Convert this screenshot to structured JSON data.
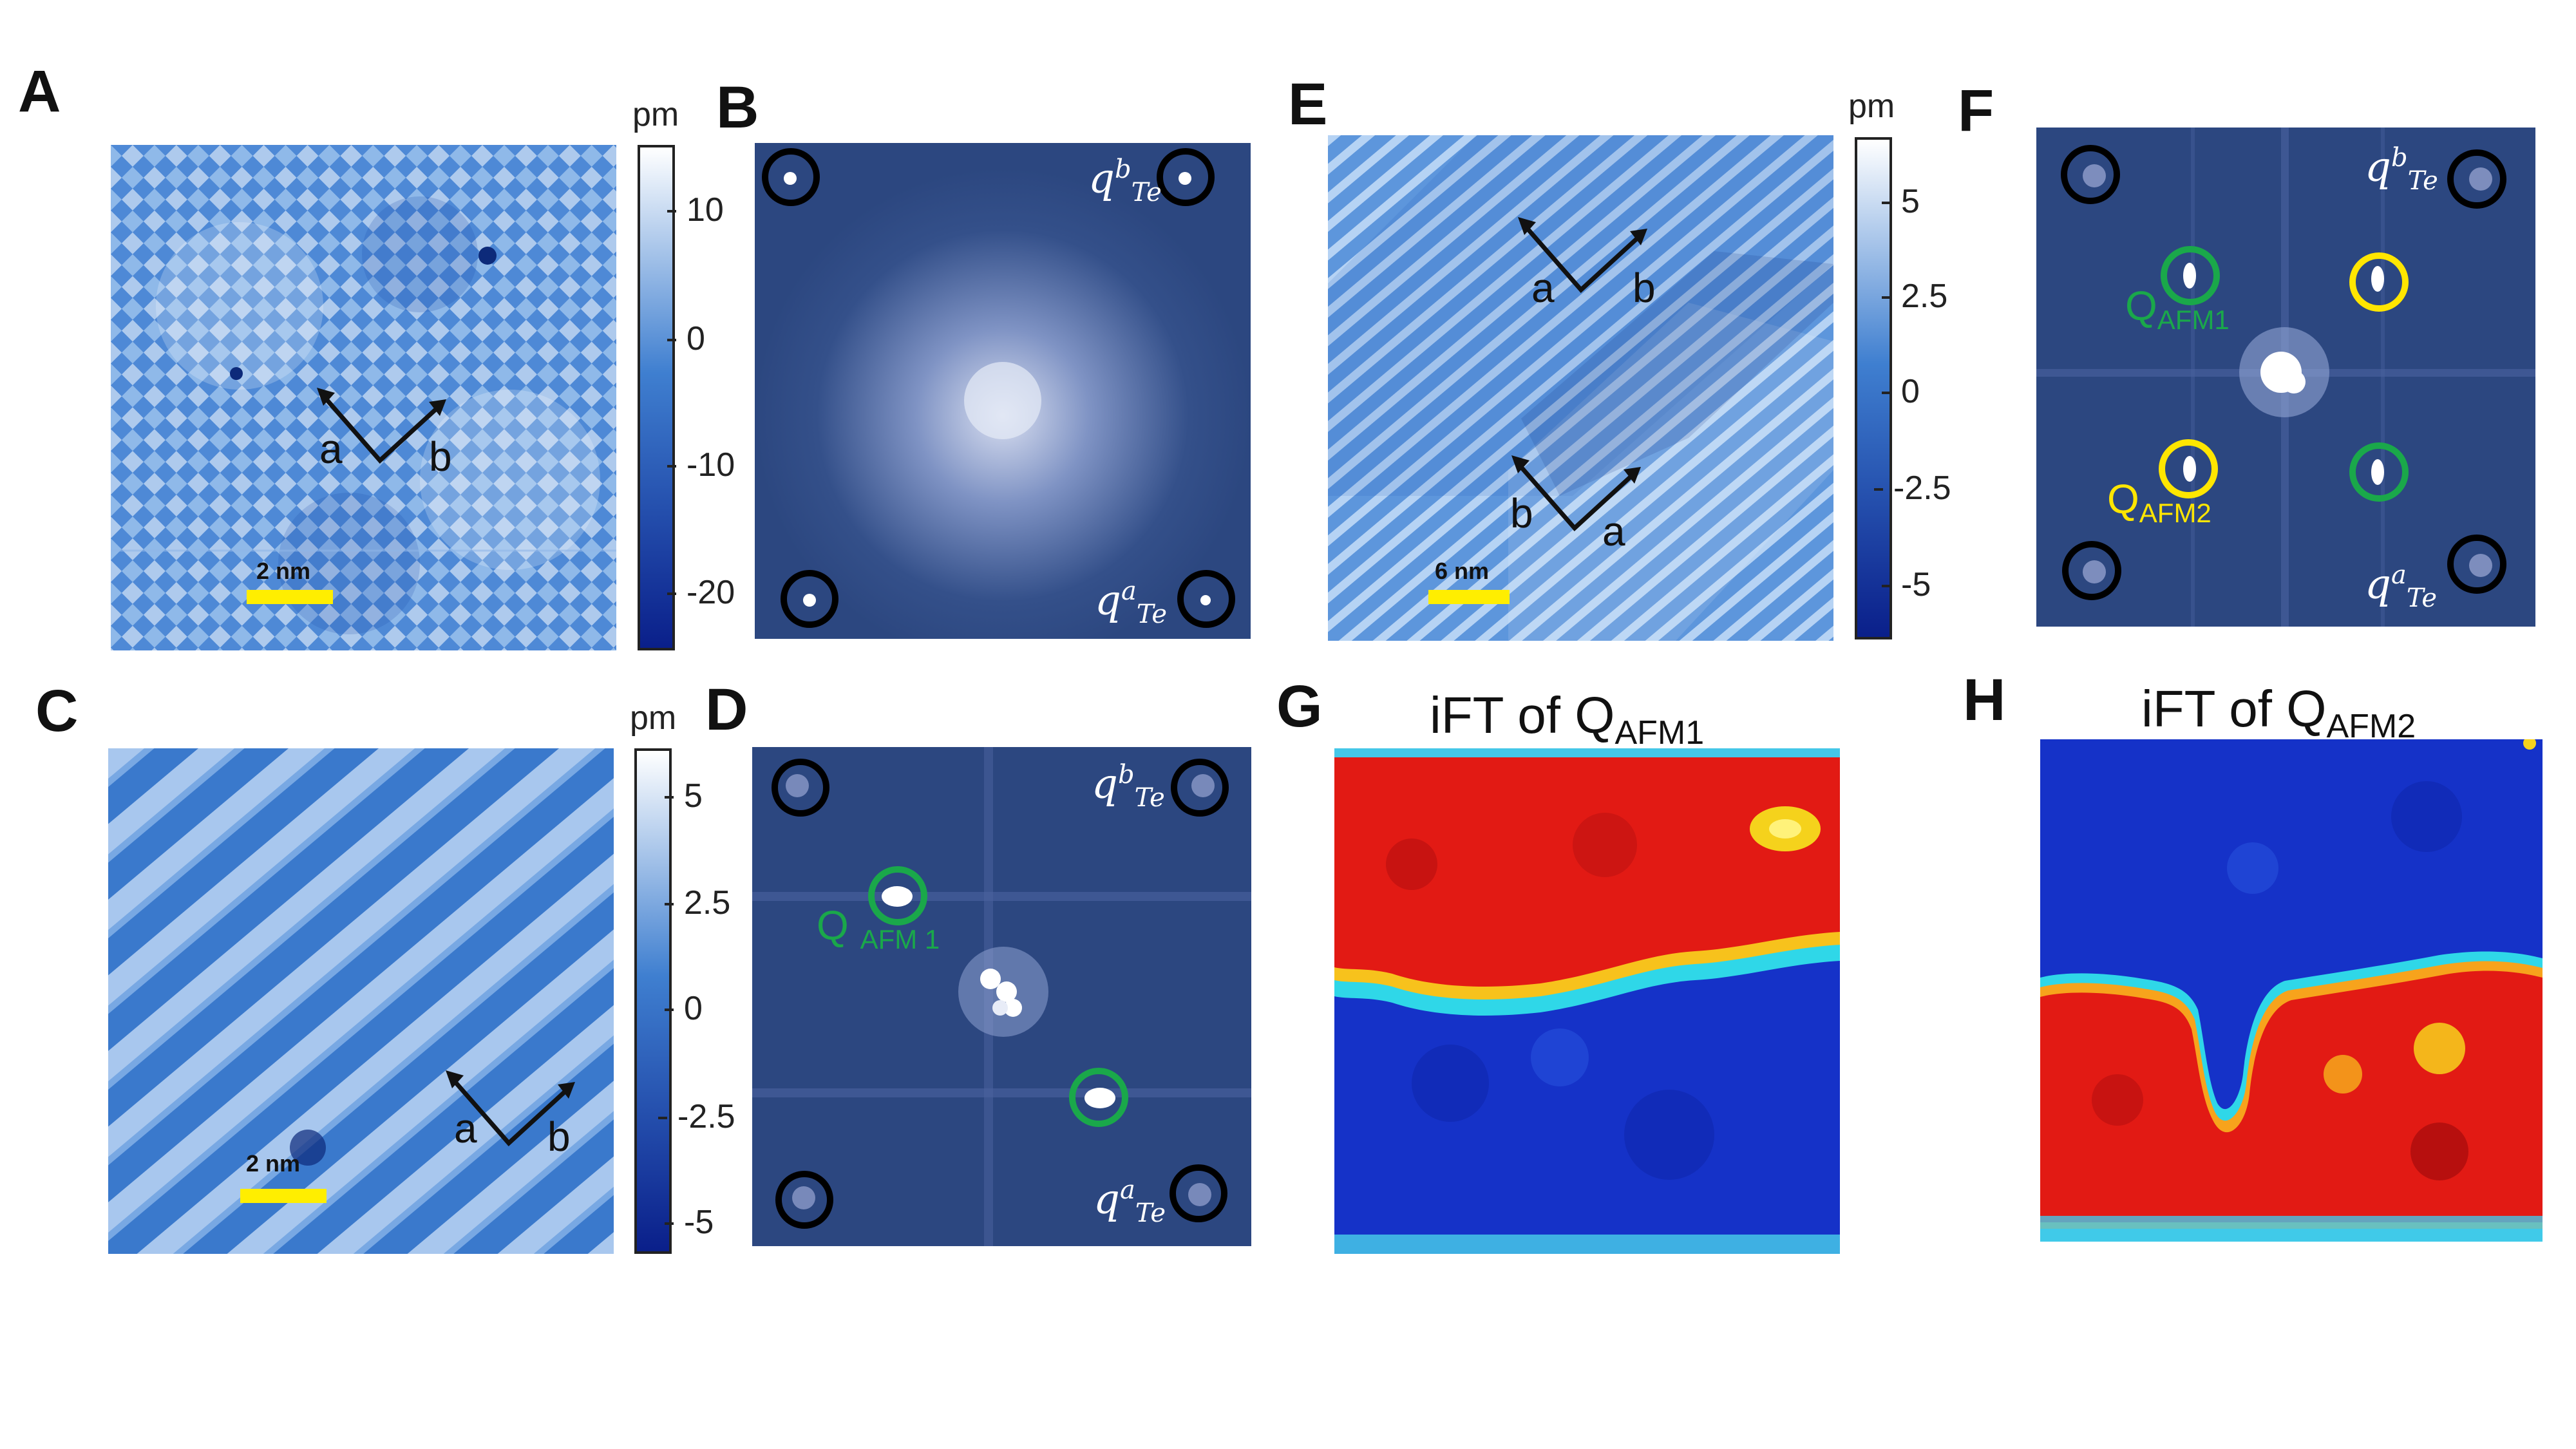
{
  "panels": {
    "A": {
      "letter": "A",
      "axes": {
        "a": "a",
        "b": "b"
      },
      "scale_label": "2 nm",
      "colorbar": {
        "unit": "pm",
        "ticks": [
          "10",
          "0",
          "-10",
          "-20"
        ]
      }
    },
    "B": {
      "letter": "B",
      "labels": {
        "q_b": "q",
        "q_b_sup": "b",
        "q_b_sub": "Te",
        "q_a": "q",
        "q_a_sup": "a",
        "q_a_sub": "Te"
      }
    },
    "C": {
      "letter": "C",
      "axes": {
        "a": "a",
        "b": "b"
      },
      "scale_label": "2 nm",
      "colorbar": {
        "unit": "pm",
        "ticks": [
          "5",
          "2.5",
          "0",
          "-2.5",
          "-5"
        ]
      }
    },
    "D": {
      "letter": "D",
      "labels": {
        "q_b": "q",
        "q_b_sup": "b",
        "q_b_sub": "Te",
        "q_a": "q",
        "q_a_sup": "a",
        "q_a_sub": "Te"
      },
      "qafm1_main": "Q",
      "qafm1_sub": "AFM 1"
    },
    "E": {
      "letter": "E",
      "axes_top": {
        "a": "a",
        "b": "b"
      },
      "axes_bottom": {
        "a": "a",
        "b": "b"
      },
      "scale_label": "6 nm",
      "colorbar": {
        "unit": "pm",
        "ticks": [
          "5",
          "2.5",
          "0",
          "-2.5",
          "-5"
        ]
      }
    },
    "F": {
      "letter": "F",
      "labels": {
        "q_b": "q",
        "q_b_sup": "b",
        "q_b_sub": "Te",
        "q_a": "q",
        "q_a_sup": "a",
        "q_a_sub": "Te"
      },
      "qafm1_main": "Q",
      "qafm1_sub": "AFM1",
      "qafm2_main": "Q",
      "qafm2_sub": "AFM2"
    },
    "G": {
      "letter": "G",
      "title_main": "iFT of Q",
      "title_sub": "AFM1"
    },
    "H": {
      "letter": "H",
      "title_main": "iFT of Q",
      "title_sub": "AFM2"
    }
  },
  "colors": {
    "black_circle": "#000000",
    "green_circle": "#1aa84a",
    "yellow_circle": "#ffe600",
    "scalebar": "#ffee00",
    "fft_bg": "#2c4780"
  }
}
